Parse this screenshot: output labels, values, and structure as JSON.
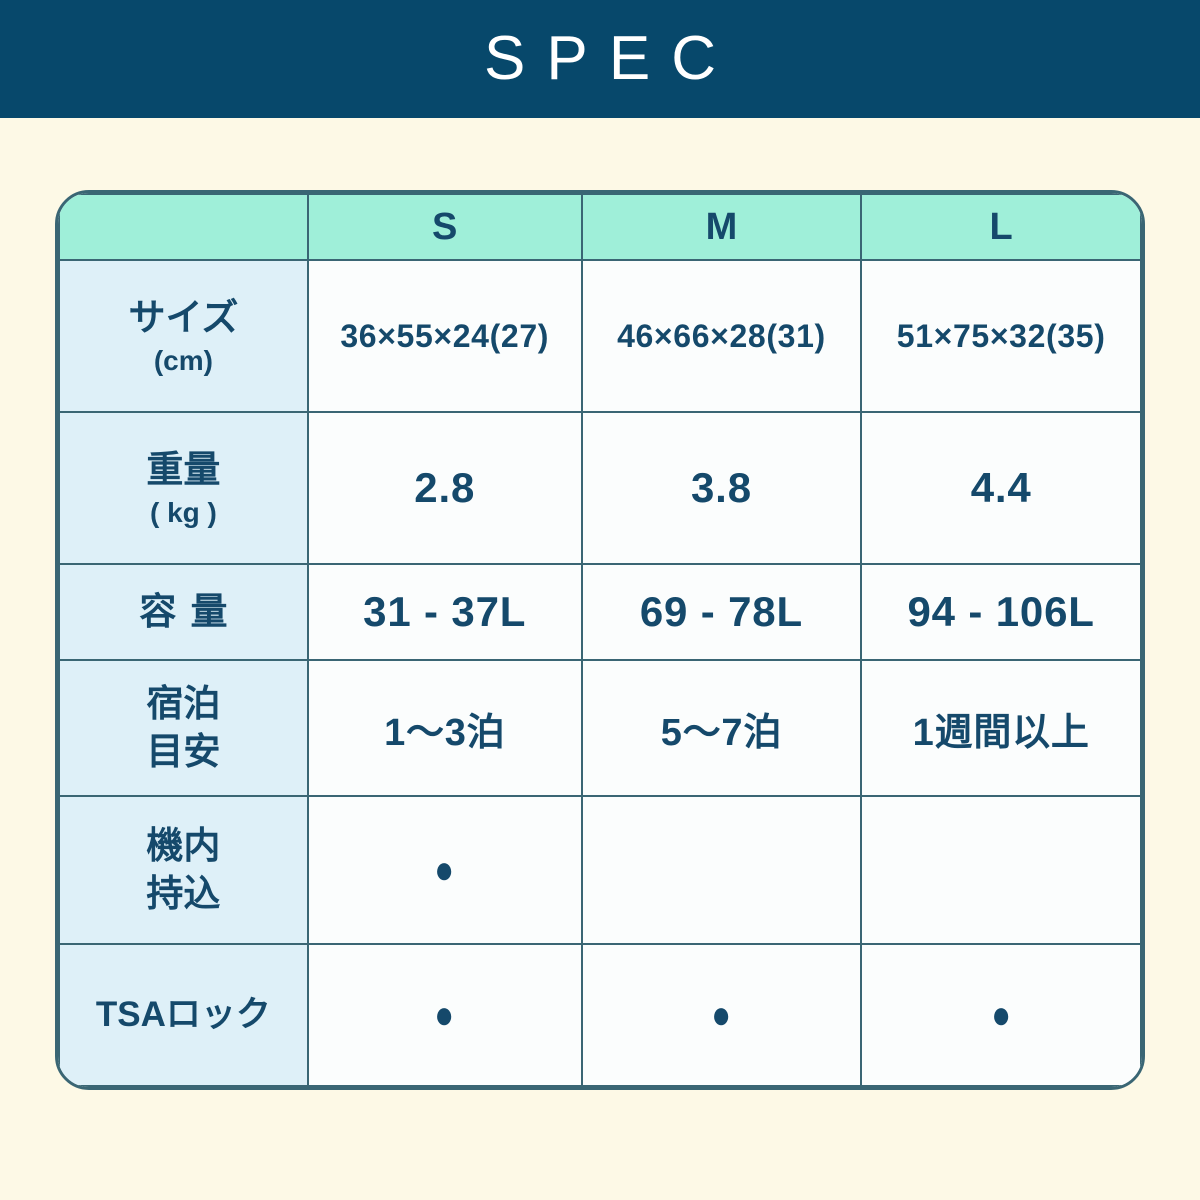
{
  "banner": {
    "title": "SPEC"
  },
  "colors": {
    "navy": "#07486B",
    "mint": "#9FEFD9",
    "light_blue": "#DEF0F8",
    "cream": "#FDF9E6",
    "cell_bg": "#FBFDFD",
    "border": "#3A6674",
    "text": "#15496B"
  },
  "table": {
    "columns": [
      "S",
      "M",
      "L"
    ],
    "rows": [
      {
        "label": "サイズ",
        "sublabel": "(cm)",
        "values": [
          "36×55×24(27)",
          "46×66×28(31)",
          "51×75×32(35)"
        ]
      },
      {
        "label": "重量",
        "sublabel": "( kg )",
        "values": [
          "2.8",
          "3.8",
          "4.4"
        ]
      },
      {
        "label": "容量",
        "sublabel": "",
        "values": [
          "31 - 37L",
          "69 - 78L",
          "94 - 106L"
        ]
      },
      {
        "label": "宿泊",
        "label2": "目安",
        "values": [
          "1〜3泊",
          "5〜7泊",
          "1週間以上"
        ]
      },
      {
        "label": "機内",
        "label2": "持込",
        "values": [
          "●",
          "",
          ""
        ]
      },
      {
        "label": "TSAロック",
        "values": [
          "●",
          "●",
          "●"
        ]
      }
    ]
  }
}
